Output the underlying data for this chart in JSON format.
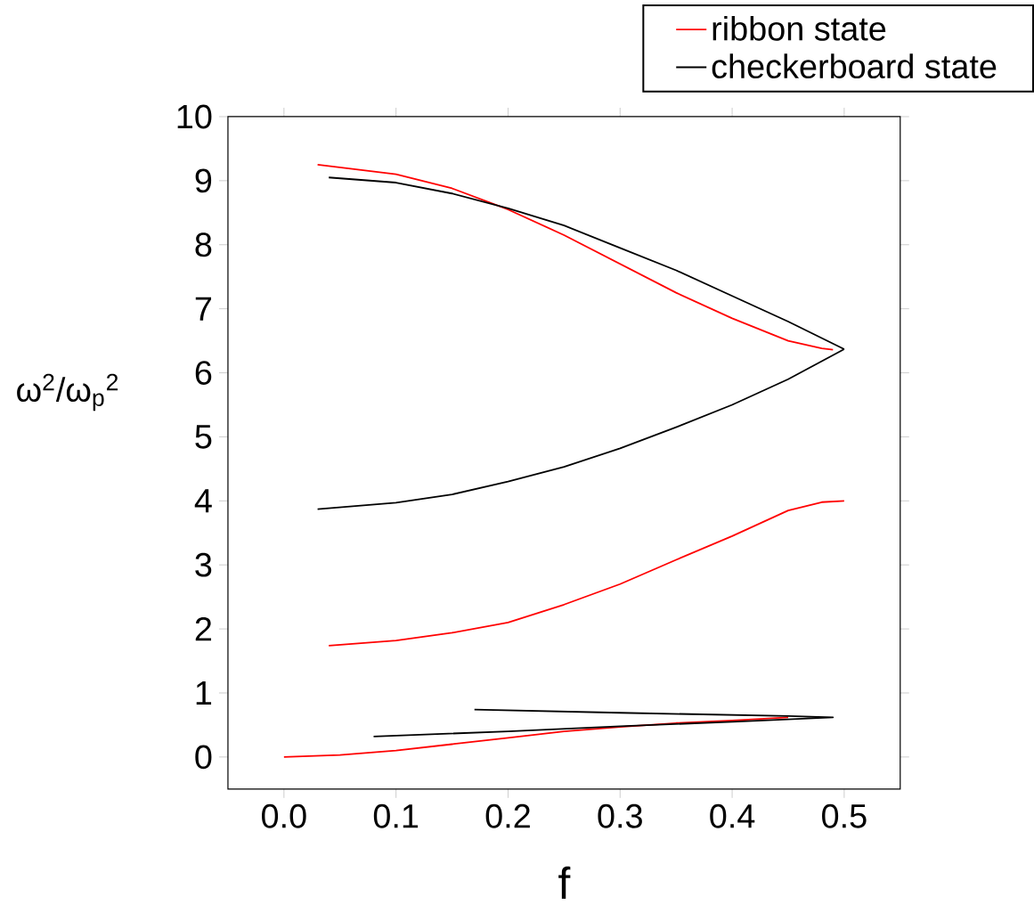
{
  "chart_data": {
    "type": "line",
    "xlabel": "f",
    "ylabel": "ω$^{2}$/ω$_{p}$$^{2}$",
    "xlim": [
      -0.05,
      0.55
    ],
    "ylim": [
      -0.5,
      10
    ],
    "xticks": [
      {
        "value": 0,
        "label": "0.0"
      },
      {
        "value": 0.1,
        "label": "0.1"
      },
      {
        "value": 0.2,
        "label": "0.2"
      },
      {
        "value": 0.3,
        "label": "0.3"
      },
      {
        "value": 0.4,
        "label": "0.4"
      },
      {
        "value": 0.5,
        "label": "0.5"
      }
    ],
    "yticks": [
      0,
      1,
      2,
      3,
      4,
      5,
      6,
      7,
      8,
      9,
      10
    ],
    "legend": "top right",
    "line_style": "solid",
    "marker": "none",
    "series": [
      {
        "name": "ribbon state",
        "color": "#ff0000",
        "x": [
          0.03,
          0.1,
          0.15,
          0.2,
          0.25,
          0.3,
          0.35,
          0.4,
          0.45,
          0.48,
          0.49
        ],
        "values": [
          9.25,
          9.1,
          8.88,
          8.55,
          8.15,
          7.7,
          7.25,
          6.85,
          6.5,
          6.38,
          6.36
        ]
      },
      {
        "color": "#ff0000",
        "x": [
          0.04,
          0.1,
          0.15,
          0.2,
          0.25,
          0.3,
          0.35,
          0.4,
          0.45,
          0.48,
          0.5
        ],
        "values": [
          1.74,
          1.82,
          1.94,
          2.1,
          2.38,
          2.7,
          3.08,
          3.45,
          3.85,
          3.98,
          4.0
        ]
      },
      {
        "color": "#ff0000",
        "x": [
          0,
          0.05,
          0.1,
          0.15,
          0.2,
          0.25,
          0.3,
          0.35,
          0.4,
          0.45
        ],
        "values": [
          0,
          0.03,
          0.1,
          0.2,
          0.3,
          0.4,
          0.47,
          0.53,
          0.57,
          0.62
        ]
      },
      {
        "name": "checkerboard state",
        "color": "#000000",
        "x": [
          0.04,
          0.1,
          0.15,
          0.2,
          0.25,
          0.3,
          0.35,
          0.4,
          0.45,
          0.5
        ],
        "values": [
          9.05,
          8.97,
          8.8,
          8.57,
          8.3,
          7.95,
          7.6,
          7.2,
          6.8,
          6.37
        ]
      },
      {
        "color": "#000000",
        "x": [
          0.03,
          0.1,
          0.15,
          0.2,
          0.25,
          0.3,
          0.35,
          0.4,
          0.45,
          0.5
        ],
        "values": [
          3.87,
          3.97,
          4.1,
          4.3,
          4.53,
          4.82,
          5.15,
          5.5,
          5.9,
          6.37
        ]
      },
      {
        "color": "#000000",
        "x": [
          0.08,
          0.2,
          0.3,
          0.4,
          0.49,
          0.45,
          0.3,
          0.17
        ],
        "values": [
          0.32,
          0.4,
          0.48,
          0.55,
          0.62,
          0.64,
          0.69,
          0.74
        ]
      }
    ]
  }
}
